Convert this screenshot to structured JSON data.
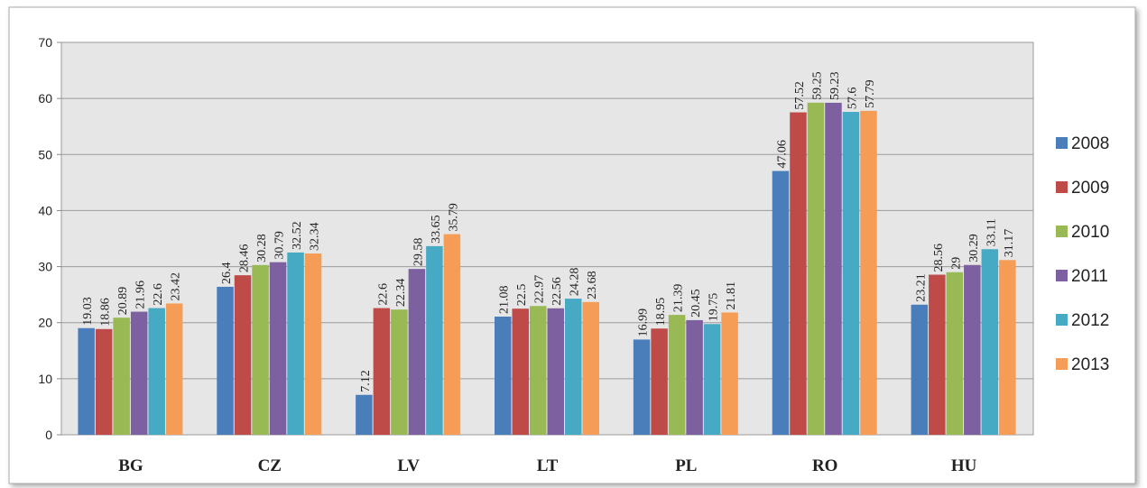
{
  "chart_data": {
    "type": "bar",
    "categories": [
      "BG",
      "CZ",
      "LV",
      "LT",
      "PL",
      "RO",
      "HU"
    ],
    "series": [
      {
        "name": "2008",
        "color": "#4a7ebb",
        "values": [
          19.03,
          26.4,
          7.12,
          21.08,
          16.99,
          47.06,
          23.21
        ]
      },
      {
        "name": "2009",
        "color": "#be4b48",
        "values": [
          18.86,
          28.46,
          22.6,
          22.5,
          18.95,
          57.52,
          28.56
        ]
      },
      {
        "name": "2010",
        "color": "#98b954",
        "values": [
          20.89,
          30.28,
          22.34,
          22.97,
          21.39,
          59.25,
          29
        ]
      },
      {
        "name": "2011",
        "color": "#7d60a0",
        "values": [
          21.96,
          30.79,
          29.58,
          22.56,
          20.45,
          59.23,
          30.29
        ]
      },
      {
        "name": "2012",
        "color": "#46aac5",
        "values": [
          22.6,
          32.52,
          33.65,
          24.28,
          19.75,
          57.6,
          33.11
        ]
      },
      {
        "name": "2013",
        "color": "#f59d56",
        "values": [
          23.42,
          32.34,
          35.79,
          23.68,
          21.81,
          57.79,
          31.17
        ]
      }
    ],
    "ylim": [
      0,
      70
    ],
    "yticks": [
      0,
      10,
      20,
      30,
      40,
      50,
      60,
      70
    ],
    "grid": true,
    "legend": "right"
  }
}
